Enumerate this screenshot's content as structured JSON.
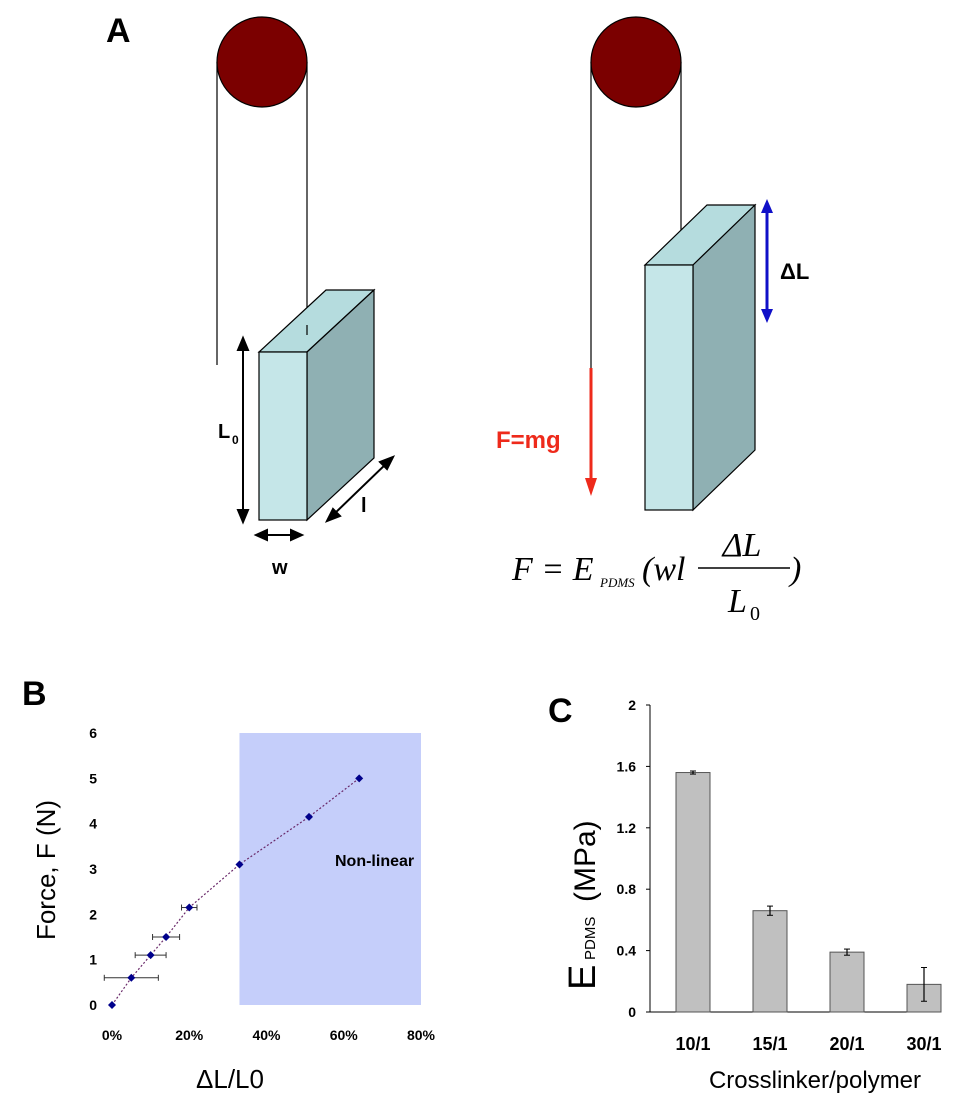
{
  "panel_a": {
    "label": "A",
    "length_label": "L",
    "length_sub": "0",
    "width_label": "w",
    "depth_label": "l",
    "delta_label": "ΔL",
    "force_label": "F=mg",
    "formula": {
      "lhs": "F = E",
      "sub": "PDMS",
      "mid": "(wl",
      "numerator": "ΔL",
      "denominator": "L",
      "denominator_sub": "0",
      "close": ")"
    }
  },
  "chart_data": [
    {
      "type": "scatter",
      "panel_label": "B",
      "x_label": "ΔL/L0",
      "y_label": "Force, F (N)",
      "annotation": "Non-linear",
      "x": [
        0,
        5,
        10,
        14,
        20,
        33,
        51,
        64
      ],
      "values": [
        0,
        0.6,
        1.1,
        1.5,
        2.15,
        3.1,
        4.15,
        5.0
      ],
      "x_errors": [
        0,
        7,
        4,
        3.5,
        2,
        0,
        0,
        0
      ],
      "color": "#00008b",
      "shaded_region": [
        33,
        80
      ],
      "shade_color": "#c5cefa",
      "xlim": [
        0,
        80
      ],
      "ylim": [
        0,
        6
      ],
      "xticks": [
        {
          "value": 0,
          "label": "0%"
        },
        {
          "value": 20,
          "label": "20%"
        },
        {
          "value": 40,
          "label": "40%"
        },
        {
          "value": 60,
          "label": "60%"
        },
        {
          "value": 80,
          "label": "80%"
        }
      ],
      "yticks": [
        0,
        1,
        2,
        3,
        4,
        5,
        6
      ]
    },
    {
      "type": "bar",
      "panel_label": "C",
      "x_label": "Crosslinker/polymer",
      "y_label": "E",
      "y_label_sub": "PDMS",
      "y_label_unit": "(MPa)",
      "categories": [
        "10/1",
        "15/1",
        "20/1",
        "30/1"
      ],
      "values": [
        1.56,
        0.66,
        0.39,
        0.18
      ],
      "errors": [
        0.01,
        0.03,
        0.02,
        0.11
      ],
      "color": "#c0c0c0",
      "ylim": [
        0,
        2
      ],
      "yticks": [
        0,
        0.4,
        0.8,
        1.2,
        1.6,
        2
      ]
    }
  ]
}
